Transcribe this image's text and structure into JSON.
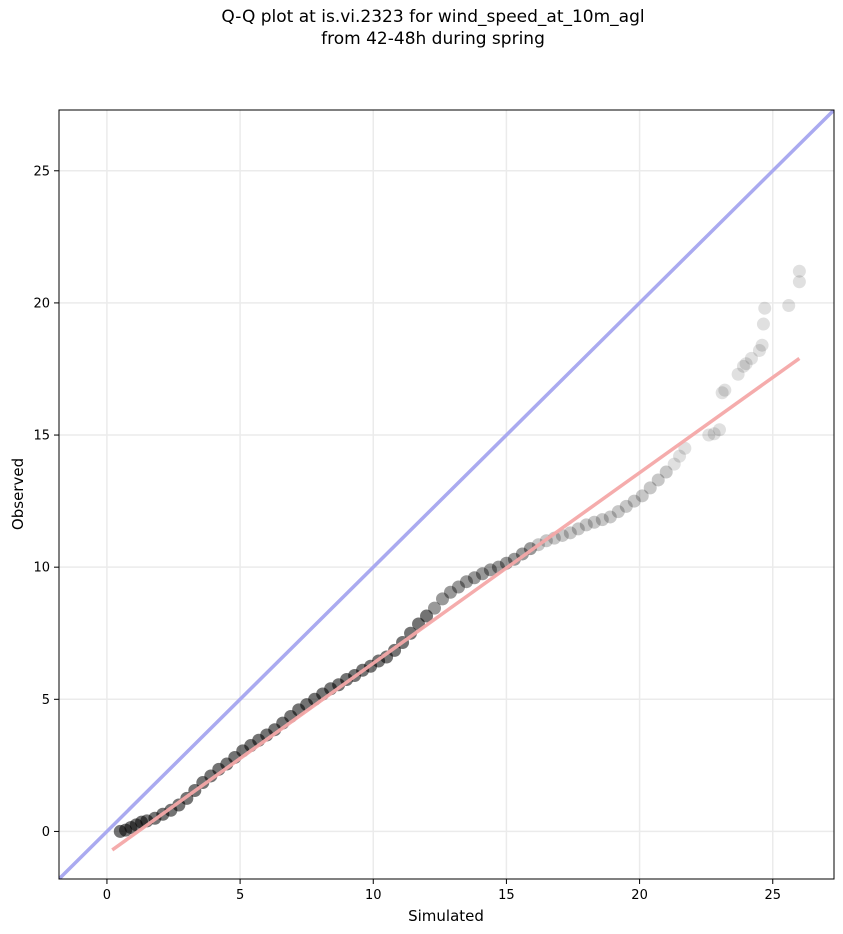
{
  "title": {
    "line1": "Q-Q plot at is.vi.2323 for wind_speed_at_10m_agl",
    "line2": "from 42-48h during spring"
  },
  "chart_data": {
    "type": "scatter",
    "xlabel": "Simulated",
    "ylabel": "Observed",
    "xlim": [
      -1.8,
      27.3
    ],
    "ylim": [
      -1.8,
      27.3
    ],
    "x_ticks": [
      0,
      5,
      10,
      15,
      20,
      25
    ],
    "y_ticks": [
      0,
      5,
      10,
      15,
      20,
      25
    ],
    "grid": true,
    "legend": "none",
    "colors": {
      "points": "#000000",
      "identity_line": "#aaaaf0",
      "fit_line": "#f4a8a8"
    },
    "reference_lines": [
      {
        "name": "1:1 line",
        "x": [
          -1.8,
          27.3
        ],
        "y": [
          -1.8,
          27.3
        ]
      },
      {
        "name": "linear fit",
        "x": [
          0.2,
          26.0
        ],
        "y": [
          -0.7,
          17.9
        ]
      }
    ],
    "series": [
      {
        "points": [
          [
            0.5,
            0.0
          ],
          [
            0.7,
            0.05
          ],
          [
            0.9,
            0.15
          ],
          [
            1.1,
            0.25
          ],
          [
            1.3,
            0.35
          ],
          [
            1.5,
            0.4
          ],
          [
            1.8,
            0.5
          ],
          [
            2.1,
            0.65
          ],
          [
            2.4,
            0.8
          ],
          [
            2.7,
            1.0
          ],
          [
            3.0,
            1.25
          ],
          [
            3.3,
            1.55
          ],
          [
            3.6,
            1.85
          ],
          [
            3.9,
            2.1
          ],
          [
            4.2,
            2.35
          ],
          [
            4.5,
            2.55
          ],
          [
            4.8,
            2.8
          ],
          [
            5.1,
            3.05
          ],
          [
            5.4,
            3.25
          ],
          [
            5.7,
            3.45
          ],
          [
            6.0,
            3.65
          ],
          [
            6.3,
            3.85
          ],
          [
            6.6,
            4.1
          ],
          [
            6.9,
            4.35
          ],
          [
            7.2,
            4.6
          ],
          [
            7.5,
            4.8
          ],
          [
            7.8,
            5.0
          ],
          [
            8.1,
            5.2
          ],
          [
            8.4,
            5.4
          ],
          [
            8.7,
            5.55
          ],
          [
            9.0,
            5.75
          ],
          [
            9.3,
            5.9
          ],
          [
            9.6,
            6.1
          ],
          [
            9.9,
            6.25
          ],
          [
            10.2,
            6.45
          ],
          [
            10.5,
            6.6
          ],
          [
            10.8,
            6.85
          ],
          [
            11.1,
            7.15
          ],
          [
            11.4,
            7.5
          ],
          [
            11.7,
            7.85
          ],
          [
            12.0,
            8.15
          ],
          [
            12.3,
            8.45
          ],
          [
            12.6,
            8.8
          ],
          [
            12.9,
            9.05
          ],
          [
            13.2,
            9.25
          ],
          [
            13.5,
            9.45
          ],
          [
            13.8,
            9.6
          ],
          [
            14.1,
            9.75
          ],
          [
            14.4,
            9.9
          ],
          [
            14.7,
            10.0
          ],
          [
            15.0,
            10.15
          ],
          [
            15.3,
            10.3
          ],
          [
            15.6,
            10.5
          ],
          [
            15.9,
            10.7
          ],
          [
            16.2,
            10.85
          ],
          [
            16.5,
            11.0
          ],
          [
            16.8,
            11.1
          ],
          [
            17.1,
            11.2
          ],
          [
            17.4,
            11.3
          ],
          [
            17.7,
            11.45
          ],
          [
            18.0,
            11.6
          ],
          [
            18.3,
            11.7
          ],
          [
            18.6,
            11.8
          ],
          [
            18.9,
            11.9
          ],
          [
            19.2,
            12.1
          ],
          [
            19.5,
            12.3
          ],
          [
            19.8,
            12.5
          ],
          [
            20.1,
            12.7
          ],
          [
            20.4,
            13.0
          ],
          [
            20.7,
            13.3
          ],
          [
            21.0,
            13.6
          ],
          [
            21.3,
            13.9
          ],
          [
            21.5,
            14.2
          ],
          [
            21.7,
            14.5
          ],
          [
            22.6,
            15.0
          ],
          [
            22.8,
            15.05
          ],
          [
            23.0,
            15.2
          ],
          [
            23.1,
            16.6
          ],
          [
            23.2,
            16.7
          ],
          [
            23.7,
            17.3
          ],
          [
            23.9,
            17.6
          ],
          [
            24.0,
            17.7
          ],
          [
            24.2,
            17.9
          ],
          [
            24.5,
            18.2
          ],
          [
            24.6,
            18.4
          ],
          [
            24.65,
            19.2
          ],
          [
            24.7,
            19.8
          ],
          [
            25.6,
            19.9
          ],
          [
            26.0,
            20.8
          ],
          [
            26.0,
            21.2
          ]
        ]
      }
    ]
  }
}
